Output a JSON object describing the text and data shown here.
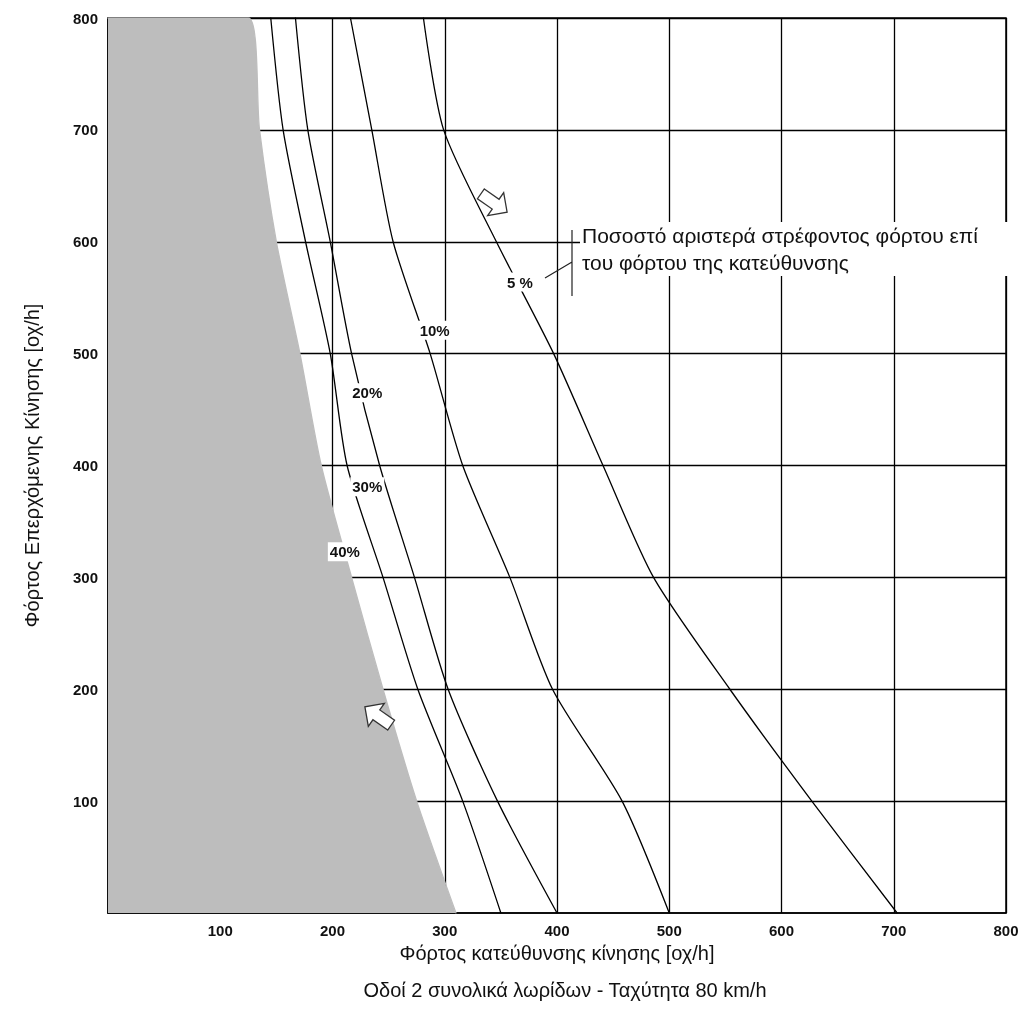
{
  "chart_data": {
    "type": "line",
    "xlabel": "Φόρτος κατεύθυνσης κίνησης [οχ/h]",
    "subtitle": "Οδοί 2 συνολικά λωρίδων - Ταχύτητα 80 km/h",
    "ylabel": "Φόρτος Επερχόμενης Κίνησης [οχ/h]",
    "xlim": [
      0,
      800
    ],
    "xticks": [
      100,
      200,
      300,
      400,
      500,
      600,
      700,
      800
    ],
    "ylim": [
      0,
      800
    ],
    "yticks": [
      100,
      200,
      300,
      400,
      500,
      600,
      700,
      800
    ],
    "grid": true,
    "marker": "none",
    "line_style": "solid",
    "series": [
      {
        "type": "area",
        "color": "#bdbdbd",
        "x": [
          0,
          125,
          135,
          150,
          171,
          190,
          217,
          245,
          275,
          310
        ],
        "values": [
          800,
          800,
          700,
          600,
          500,
          400,
          300,
          200,
          100,
          0
        ]
      },
      {
        "color": "#000000",
        "x": [
          145,
          156,
          176,
          198,
          213,
          245,
          276,
          316,
          350
        ],
        "values": [
          800,
          700,
          600,
          500,
          400,
          300,
          200,
          100,
          0
        ]
      },
      {
        "color": "#000000",
        "x": [
          167,
          178,
          198,
          217,
          242,
          273,
          303,
          347,
          400
        ],
        "values": [
          800,
          700,
          600,
          500,
          400,
          300,
          200,
          100,
          0
        ]
      },
      {
        "color": "#000000",
        "x": [
          216,
          235,
          254,
          287,
          316,
          358,
          396,
          458,
          500
        ],
        "values": [
          800,
          700,
          600,
          500,
          400,
          300,
          200,
          100,
          0
        ]
      },
      {
        "color": "#000000",
        "x": [
          281,
          299,
          346,
          397,
          441,
          486,
          554,
          627,
          703
        ],
        "values": [
          800,
          700,
          600,
          500,
          400,
          300,
          200,
          100,
          0
        ]
      }
    ],
    "annotations": [
      {
        "text": "5 %",
        "x": 367,
        "y": 564
      },
      {
        "text": "10%",
        "x": 291,
        "y": 521
      },
      {
        "text": "20%",
        "x": 231,
        "y": 465
      },
      {
        "text": "30%",
        "x": 231,
        "y": 381
      },
      {
        "text": "40%",
        "x": 211,
        "y": 323
      },
      "Ποσοστό αριστερά στρέφοντος φόρτου επί του φόρτου της κατεύθυνσης"
    ]
  }
}
